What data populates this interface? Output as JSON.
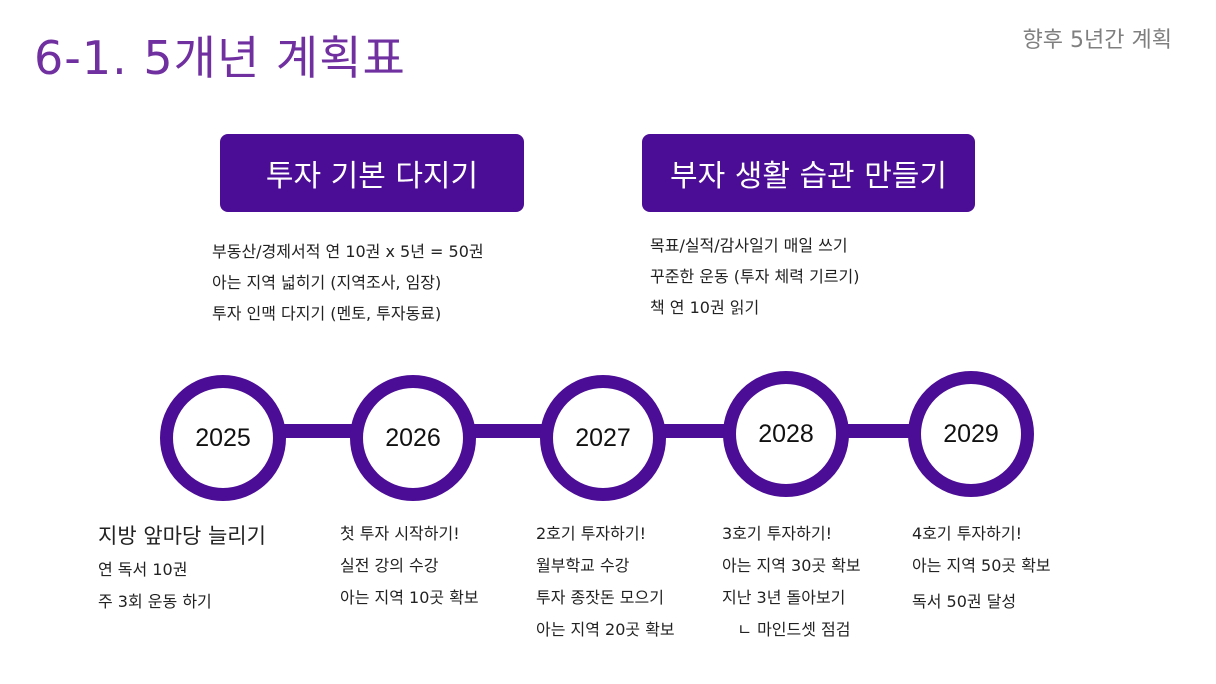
{
  "header": {
    "title": "6-1. 5개년 계획표",
    "subtitle": "향후 5년간 계획"
  },
  "colors": {
    "accent": "#4b0c96",
    "title": "#7030a0"
  },
  "goals": [
    {
      "label": "투자 기본 다지기",
      "items": [
        "부동산/경제서적 연 10권 x 5년 = 50권",
        "아는 지역 넓히기 (지역조사, 임장)",
        "투자 인맥 다지기 (멘토, 투자동료)"
      ]
    },
    {
      "label": "부자 생활 습관 만들기",
      "items": [
        "목표/실적/감사일기 매일 쓰기",
        "꾸준한 운동 (투자 체력 기르기)",
        "책 연 10권 읽기"
      ]
    }
  ],
  "timeline": [
    {
      "year": "2025",
      "items": [
        "지방 앞마당 늘리기",
        "연 독서 10권",
        "주 3회 운동 하기"
      ]
    },
    {
      "year": "2026",
      "items": [
        "첫 투자 시작하기!",
        "실전 강의 수강",
        "아는 지역 10곳 확보"
      ]
    },
    {
      "year": "2027",
      "items": [
        "2호기 투자하기!",
        "월부학교 수강",
        "투자 종잣돈 모으기",
        "아는 지역 20곳 확보"
      ]
    },
    {
      "year": "2028",
      "items": [
        "3호기 투자하기!",
        "아는 지역 30곳 확보",
        "지난 3년 돌아보기",
        "   ㄴ 마인드셋 점검"
      ]
    },
    {
      "year": "2029",
      "items": [
        "4호기 투자하기!",
        "아는 지역 50곳 확보",
        "독서 50권 달성"
      ]
    }
  ]
}
